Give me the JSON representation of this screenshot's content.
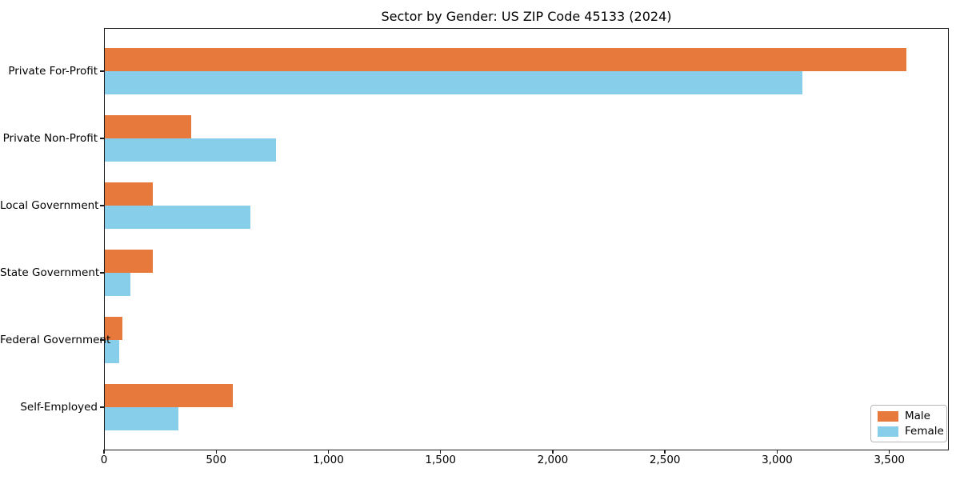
{
  "chart_data": {
    "type": "bar",
    "orientation": "horizontal",
    "title": "Sector by Gender: US ZIP Code 45133 (2024)",
    "categories": [
      "Private For-Profit",
      "Private Non-Profit",
      "Local Government",
      "State Government",
      "Federal Government",
      "Self-Employed"
    ],
    "series": [
      {
        "name": "Male",
        "color": "#E8793C",
        "values": [
          3580,
          385,
          215,
          215,
          79,
          570
        ]
      },
      {
        "name": "Female",
        "color": "#87CEEB",
        "values": [
          3115,
          765,
          650,
          113,
          64,
          330
        ]
      }
    ],
    "xlabel": "",
    "ylabel": "",
    "xlim": [
      0,
      3765
    ],
    "x_ticks": [
      0,
      500,
      1000,
      1500,
      2000,
      2500,
      3000,
      3500
    ],
    "x_tick_labels": [
      "0",
      "500",
      "1,000",
      "1,500",
      "2,000",
      "2,500",
      "3,000",
      "3,500"
    ],
    "legend": {
      "position": "lower-right",
      "entries": [
        "Male",
        "Female"
      ]
    },
    "grid": false,
    "background_color": "#ffffff",
    "text_color": "#000000"
  }
}
